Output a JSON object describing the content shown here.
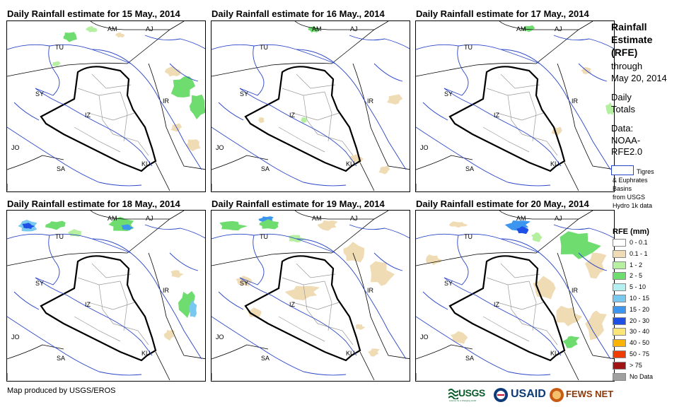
{
  "panels": [
    {
      "title": "Daily Rainfall estimate for 15 May., 2014"
    },
    {
      "title": "Daily Rainfall estimate for 16 May., 2014"
    },
    {
      "title": "Daily Rainfall estimate for 17 May., 2014"
    },
    {
      "title": "Daily Rainfall estimate for 18 May., 2014"
    },
    {
      "title": "Daily Rainfall estimate for 19 May., 2014"
    },
    {
      "title": "Daily Rainfall estimate for 20 May., 2014"
    }
  ],
  "country_labels": {
    "am": "AM",
    "aj": "AJ",
    "tu": "TU",
    "sy": "SY",
    "iz": "IZ",
    "ir": "IR",
    "jo": "JO",
    "sa": "SA",
    "ku": "KU"
  },
  "sidebar": {
    "title_lines": [
      "Rainfall",
      "Estimate",
      "(RFE)"
    ],
    "through": "through",
    "date": "May 20, 2014",
    "daily": "Daily",
    "totals": "Totals",
    "data_label": "Data:",
    "data_source_1": "NOAA-",
    "data_source_2": "RFE2.0"
  },
  "basins": {
    "line1": "Tigres",
    "line2": "& Euphrates",
    "line3": "Basins",
    "line4": "from USGS",
    "line5": "Hydro 1k data"
  },
  "legend": {
    "title": "RFE (mm)",
    "items": [
      {
        "label": "0 - 0.1",
        "color": "#ffffff"
      },
      {
        "label": "0.1 - 1",
        "color": "#f0dcb4"
      },
      {
        "label": "1 - 2",
        "color": "#b4f0a0"
      },
      {
        "label": "2 - 5",
        "color": "#6edc6e"
      },
      {
        "label": "5 - 10",
        "color": "#b4f0f0"
      },
      {
        "label": "10 - 15",
        "color": "#78c8f0"
      },
      {
        "label": "15 - 20",
        "color": "#3c96f0"
      },
      {
        "label": "20 - 30",
        "color": "#1e50e6"
      },
      {
        "label": "30 - 40",
        "color": "#fae678"
      },
      {
        "label": "40 - 50",
        "color": "#fab400"
      },
      {
        "label": "50 - 75",
        "color": "#f03c00"
      },
      {
        "label": "> 75",
        "color": "#a01414"
      },
      {
        "label": "No Data",
        "color": "#a0a0a0"
      }
    ]
  },
  "footer": {
    "credit": "Map produced by USGS/EROS"
  },
  "logos": {
    "usgs": "USGS",
    "usgs_tagline": "science for a changing world",
    "usaid": "USAID",
    "fewsnet": "FEWS NET"
  }
}
